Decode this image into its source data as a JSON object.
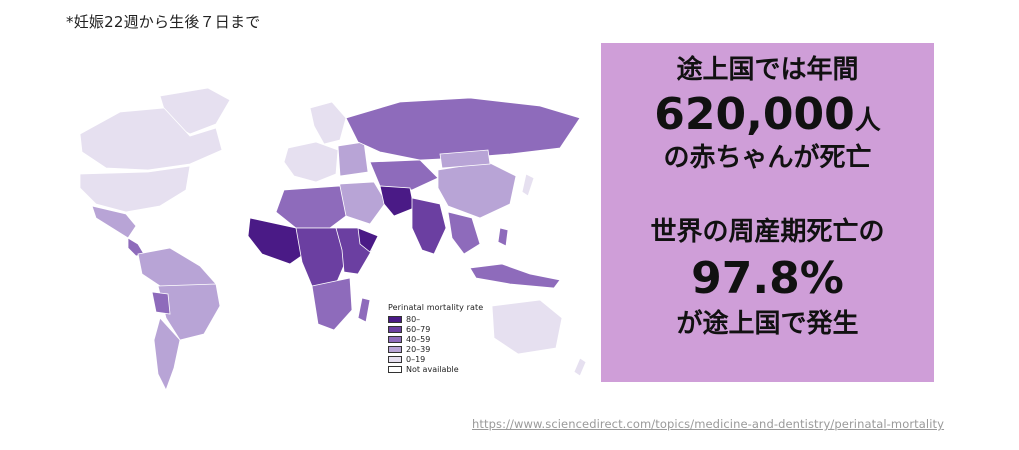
{
  "footnote": "*妊娠22週から生後７日まで",
  "map": {
    "legend": {
      "title": "Perinatal mortality rate",
      "items": [
        {
          "label": "80–",
          "color": "#4a1a86"
        },
        {
          "label": "60–79",
          "color": "#6b3fa1"
        },
        {
          "label": "40–59",
          "color": "#8e6bbb"
        },
        {
          "label": "20–39",
          "color": "#b8a4d6"
        },
        {
          "label": "0–19",
          "color": "#e6e0f0"
        },
        {
          "label": "Not available",
          "color": "#ffffff"
        }
      ]
    }
  },
  "info_box": {
    "line1": "途上国では年間",
    "number1": "620,000",
    "number1_unit": "人",
    "line2": "の赤ちゃんが死亡",
    "line3": "世界の周産期死亡の",
    "number2": "97.8%",
    "line4": "が途上国で発生",
    "background": "#cf9ed8"
  },
  "source_url": "https://www.sciencedirect.com/topics/medicine-and-dentistry/perinatal-mortality"
}
